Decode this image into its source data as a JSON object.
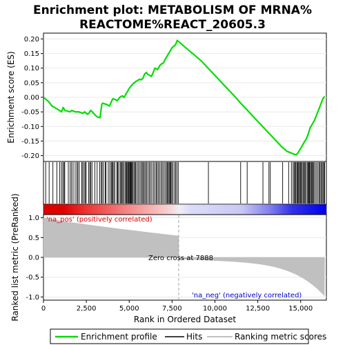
{
  "chart_data": {
    "type": "line",
    "title": "Enrichment plot: METABOLISM OF MRNA%\nREACTOME%REACT_20605.3",
    "xlabel": "Rank in Ordered Dataset",
    "ylabel_top": "Enrichment score (ES)",
    "ylabel_bottom": "Ranked list metric (PreRanked)",
    "xlim": [
      0,
      16500
    ],
    "ylim_top": [
      -0.22,
      0.22
    ],
    "ylim_bottom": [
      -1.08,
      1.08
    ],
    "x_ticks": [
      0,
      2500,
      5000,
      7500,
      10000,
      12500,
      15000
    ],
    "x_tick_labels": [
      "0",
      "2,500",
      "5,000",
      "7,500",
      "10,000",
      "12,500",
      "15,000"
    ],
    "y_ticks_top": [
      0.2,
      0.15,
      0.1,
      0.05,
      0.0,
      -0.05,
      -0.1,
      -0.15,
      -0.2
    ],
    "y_tick_labels_top": [
      "0.20",
      "0.15",
      "0.10",
      "0.05",
      "0.00",
      "-0.05",
      "-0.10",
      "-0.15",
      "-0.20"
    ],
    "y_ticks_bottom": [
      1.0,
      0.5,
      0.0,
      -0.5,
      -1.0
    ],
    "y_tick_labels_bottom": [
      "1.0",
      "0.5",
      "0.0",
      "-0.5",
      "-1.0"
    ],
    "annotations": {
      "pos_label": "'na_pos' (positively correlated)",
      "neg_label": "'na_neg' (negatively correlated)",
      "zero_cross": "Zero cross at 7888",
      "zero_cross_rank": 7888
    },
    "legend": {
      "placement": "bottom",
      "entries": [
        "Enrichment profile",
        "Hits",
        "Ranking metric scores"
      ]
    },
    "colors": {
      "profile": "#00dd00",
      "hits": "#000000",
      "metric": "#c0c0c0",
      "zero_line": "#a0a0a0",
      "pos": "#dd0000",
      "neg": "#0000ee"
    },
    "series": [
      {
        "name": "Enrichment profile",
        "x": [
          0,
          300,
          500,
          800,
          1050,
          1150,
          1250,
          1550,
          1650,
          1850,
          2050,
          2300,
          2400,
          2550,
          2650,
          2750,
          2850,
          3000,
          3150,
          3300,
          3400,
          3450,
          3550,
          3700,
          3850,
          4000,
          4050,
          4200,
          4300,
          4450,
          4600,
          4700,
          4800,
          4900,
          5000,
          5100,
          5200,
          5300,
          5400,
          5500,
          5600,
          5700,
          5800,
          5900,
          6000,
          6100,
          6200,
          6300,
          6400,
          6500,
          6650,
          6800,
          6900,
          7000,
          7100,
          7200,
          7300,
          7400,
          7500,
          7600,
          7700,
          7800,
          7900,
          8000,
          8400,
          8800,
          9200,
          9600,
          10000,
          10400,
          10800,
          11200,
          11500,
          11900,
          12300,
          12700,
          13100,
          13500,
          13900,
          14200,
          14400,
          14600,
          14750,
          14850,
          14950,
          15050,
          15150,
          15250,
          15350,
          15450,
          15550,
          15700,
          15800,
          15900,
          16000,
          16100,
          16200,
          16300,
          16400
        ],
        "y": [
          0.0,
          -0.015,
          -0.03,
          -0.04,
          -0.05,
          -0.035,
          -0.045,
          -0.05,
          -0.045,
          -0.05,
          -0.05,
          -0.055,
          -0.05,
          -0.058,
          -0.055,
          -0.045,
          -0.05,
          -0.06,
          -0.068,
          -0.07,
          -0.025,
          -0.02,
          -0.022,
          -0.025,
          -0.03,
          -0.01,
          -0.005,
          -0.008,
          -0.012,
          0.0,
          0.005,
          0.0,
          0.01,
          0.02,
          0.03,
          0.038,
          0.045,
          0.05,
          0.055,
          0.058,
          0.062,
          0.06,
          0.065,
          0.08,
          0.085,
          0.078,
          0.075,
          0.072,
          0.085,
          0.1,
          0.095,
          0.11,
          0.115,
          0.118,
          0.13,
          0.14,
          0.15,
          0.16,
          0.17,
          0.175,
          0.18,
          0.195,
          0.19,
          0.185,
          0.165,
          0.145,
          0.125,
          0.1,
          0.075,
          0.05,
          0.025,
          0.0,
          -0.02,
          -0.045,
          -0.07,
          -0.095,
          -0.12,
          -0.145,
          -0.17,
          -0.185,
          -0.19,
          -0.195,
          -0.197,
          -0.19,
          -0.18,
          -0.17,
          -0.16,
          -0.15,
          -0.14,
          -0.125,
          -0.105,
          -0.09,
          -0.08,
          -0.065,
          -0.05,
          -0.035,
          -0.02,
          -0.005,
          0.003
        ]
      }
    ],
    "hits": [
      130,
      330,
      550,
      780,
      950,
      1050,
      1130,
      1200,
      1240,
      1450,
      1560,
      1640,
      1730,
      1850,
      1950,
      2010,
      2090,
      2230,
      2290,
      2370,
      2440,
      2490,
      2630,
      2700,
      2760,
      2830,
      3000,
      3130,
      3280,
      3370,
      3420,
      3500,
      3600,
      3650,
      3780,
      3870,
      3950,
      4000,
      4030,
      4100,
      4160,
      4280,
      4320,
      4380,
      4470,
      4520,
      4580,
      4630,
      4700,
      4780,
      4830,
      4870,
      4920,
      4970,
      5000,
      5050,
      5090,
      5120,
      5160,
      5200,
      5270,
      5330,
      5380,
      5460,
      5530,
      5620,
      5690,
      5760,
      5820,
      5880,
      5950,
      6010,
      6090,
      6170,
      6240,
      6320,
      6410,
      6490,
      6570,
      6630,
      6700,
      6780,
      6860,
      6930,
      7010,
      7090,
      7170,
      7220,
      7280,
      7330,
      7380,
      7430,
      7480,
      7550,
      7640,
      7710,
      7780,
      7860,
      9620,
      11500,
      11880,
      12800,
      13150,
      13230,
      13950,
      14300,
      14460,
      14560,
      14620,
      14680,
      14720,
      14780,
      14830,
      14880,
      14930,
      14980,
      15020,
      15080,
      15140,
      15200,
      15250,
      15300,
      15380,
      15430,
      15480,
      15520,
      15560,
      15620,
      15660,
      15700,
      15760,
      15820,
      15900,
      15980,
      16060,
      16120,
      16180,
      16240,
      16300,
      16350,
      16400
    ]
  }
}
